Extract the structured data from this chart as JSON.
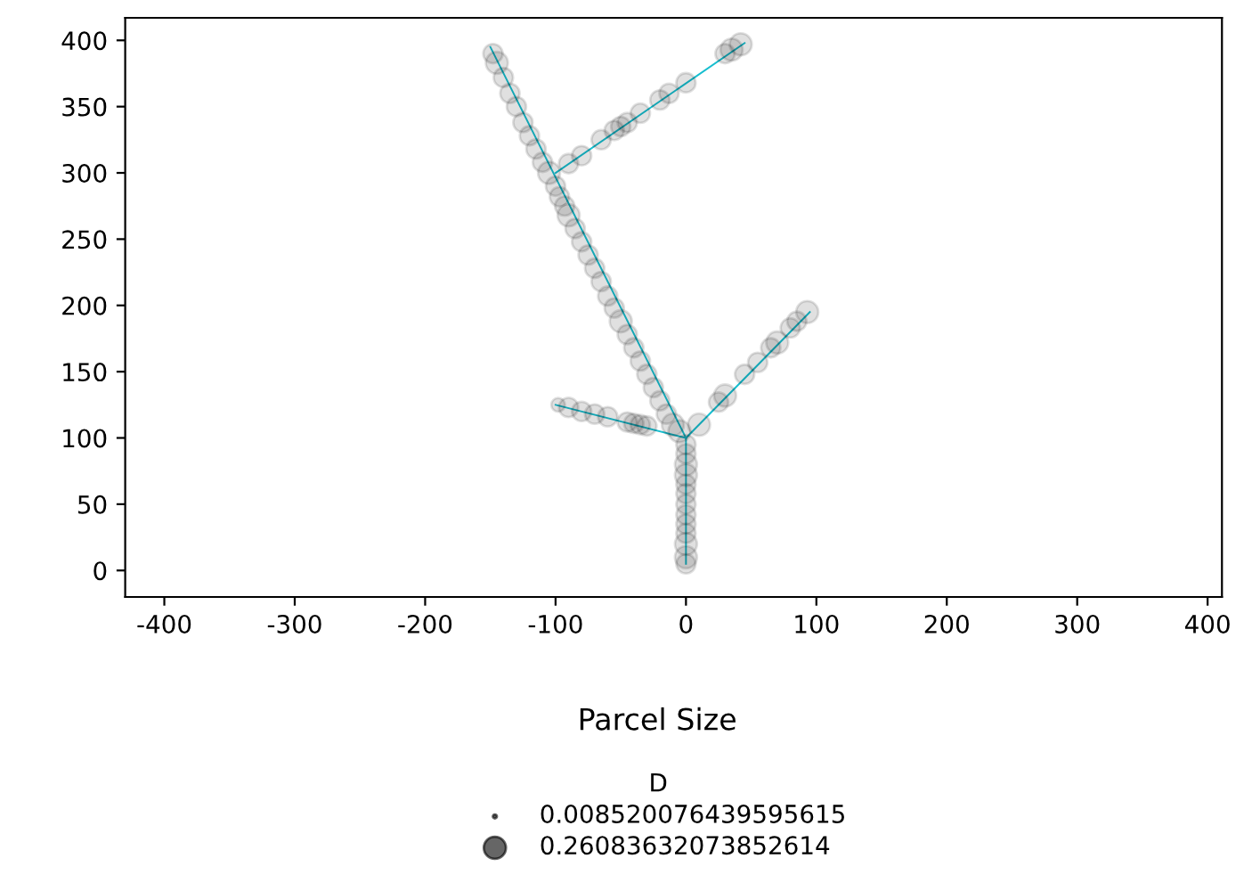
{
  "chart_data": {
    "type": "bubble",
    "legend_title": "D",
    "annotations": [
      "Parcel Size"
    ],
    "xlim": [
      -430,
      411
    ],
    "ylim": [
      -20,
      417
    ],
    "xticks": [
      -400,
      -300,
      -200,
      -100,
      0,
      100,
      200,
      300,
      400
    ],
    "yticks": [
      0,
      50,
      100,
      150,
      200,
      250,
      300,
      350,
      400
    ],
    "grid": false,
    "size_legend": [
      0.008520076439595615,
      0.26083632073852614
    ],
    "series": [
      {
        "type": "line",
        "color": "#17becf",
        "x": [
          0,
          -150
        ],
        "values": [
          100,
          395
        ]
      },
      {
        "type": "line",
        "color": "#17becf",
        "x": [
          -100,
          45
        ],
        "values": [
          300,
          398
        ]
      },
      {
        "type": "line",
        "color": "#17becf",
        "x": [
          0,
          95
        ],
        "values": [
          100,
          195
        ]
      },
      {
        "type": "line",
        "color": "#17becf",
        "x": [
          0,
          -100
        ],
        "values": [
          100,
          125
        ]
      },
      {
        "type": "line",
        "color": "#17becf",
        "x": [
          0,
          0
        ],
        "values": [
          100,
          5
        ]
      },
      {
        "color": "#000000",
        "x": [
          -148,
          -145,
          -140,
          -135,
          -130,
          -125,
          -120,
          -115,
          -110,
          -105,
          -100,
          -97,
          -93,
          -90,
          -85,
          -80,
          -75,
          -70,
          -65,
          -60,
          -55,
          -50,
          -45,
          -40,
          -35,
          -30,
          -25,
          -20,
          -15,
          -10,
          -5,
          -90,
          -80,
          -65,
          -55,
          -50,
          -45,
          -35,
          -20,
          -13,
          0,
          30,
          35,
          42,
          10,
          25,
          30,
          45,
          55,
          65,
          70,
          80,
          85,
          93,
          -98,
          -90,
          -80,
          -70,
          -60,
          -45,
          -40,
          -35,
          -30,
          0,
          0,
          0,
          0,
          0,
          0,
          0,
          0,
          0,
          0,
          0,
          0,
          0
        ],
        "values": [
          390,
          383,
          372,
          360,
          350,
          338,
          328,
          318,
          308,
          300,
          290,
          282,
          275,
          268,
          258,
          248,
          238,
          228,
          218,
          207,
          198,
          188,
          178,
          168,
          158,
          148,
          138,
          128,
          118,
          110,
          105,
          307,
          313,
          325,
          332,
          335,
          338,
          345,
          355,
          360,
          368,
          390,
          393,
          397,
          110,
          127,
          132,
          148,
          157,
          168,
          172,
          183,
          188,
          195,
          125,
          123,
          120,
          118,
          116,
          112,
          111,
          110,
          109,
          95,
          88,
          80,
          72,
          65,
          58,
          50,
          42,
          35,
          28,
          20,
          10,
          5
        ],
        "sizes": [
          0.2,
          0.26,
          0.2,
          0.2,
          0.2,
          0.2,
          0.2,
          0.2,
          0.2,
          0.26,
          0.2,
          0.2,
          0.2,
          0.26,
          0.2,
          0.2,
          0.2,
          0.2,
          0.2,
          0.2,
          0.2,
          0.26,
          0.2,
          0.2,
          0.2,
          0.2,
          0.2,
          0.2,
          0.2,
          0.26,
          0.26,
          0.2,
          0.2,
          0.2,
          0.2,
          0.2,
          0.2,
          0.2,
          0.2,
          0.2,
          0.2,
          0.2,
          0.26,
          0.26,
          0.26,
          0.2,
          0.26,
          0.2,
          0.2,
          0.2,
          0.26,
          0.2,
          0.2,
          0.26,
          0.1,
          0.2,
          0.2,
          0.2,
          0.2,
          0.2,
          0.2,
          0.2,
          0.2,
          0.2,
          0.2,
          0.26,
          0.26,
          0.2,
          0.2,
          0.2,
          0.2,
          0.2,
          0.2,
          0.26,
          0.26,
          0.2
        ]
      }
    ]
  }
}
